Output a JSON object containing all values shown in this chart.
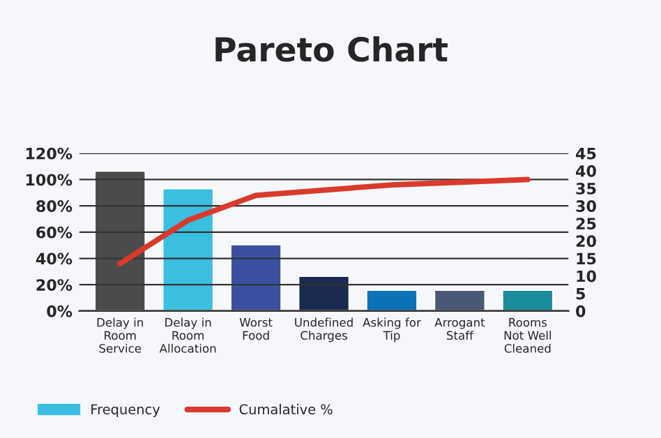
{
  "chart_data": {
    "type": "bar",
    "title": "Pareto Chart",
    "categories": [
      "Delay in\nRoom\nService",
      "Delay in\nRoom\nAllocation",
      "Worst\nFood",
      "Undefined\nCharges",
      "Asking for\nTip",
      "Arrogant\nStaff",
      "Rooms\nNot Well\nCleaned"
    ],
    "series": [
      {
        "name": "Frequency",
        "axis": "y2",
        "color": "#3bbfe0",
        "colors": [
          "#4a4b4d",
          "#3bbfe0",
          "#3a4fa0",
          "#1b2a50",
          "#0c72b8",
          "#4a5878",
          "#1a8d9a"
        ],
        "values": [
          40,
          35,
          19,
          10,
          6,
          6,
          6
        ]
      },
      {
        "name": "Cumalative %",
        "type": "line",
        "axis": "y",
        "color": "#d93a2b",
        "values": [
          36,
          69,
          88,
          92,
          96,
          98,
          100
        ]
      }
    ],
    "ylim": [
      0,
      120
    ],
    "yticks": [
      {
        "value": 0,
        "label": "0%"
      },
      {
        "value": 20,
        "label": "20%"
      },
      {
        "value": 40,
        "label": "40%"
      },
      {
        "value": 60,
        "label": "60%"
      },
      {
        "value": 80,
        "label": "80%"
      },
      {
        "value": 100,
        "label": "100%"
      },
      {
        "value": 120,
        "label": "120%"
      }
    ],
    "y2lim": [
      0,
      45
    ],
    "y2ticks": [
      0,
      5,
      10,
      15,
      20,
      25,
      30,
      35,
      40,
      45
    ],
    "grid": "y",
    "legend": "bottom left"
  }
}
